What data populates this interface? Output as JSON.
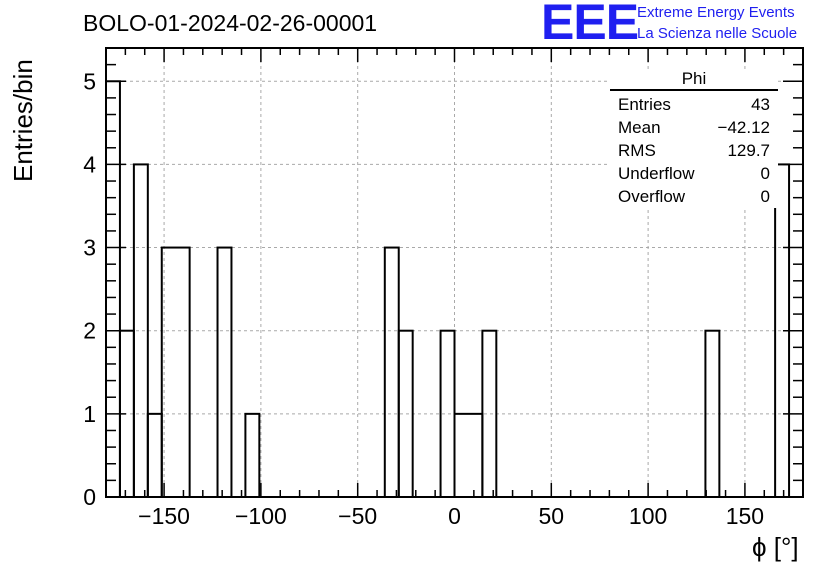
{
  "header": {
    "title": "BOLO-01-2024-02-26-00001"
  },
  "logo": {
    "text": "EEE",
    "line1": "Extreme Energy Events",
    "line2": "La Scienza nelle Scuole",
    "color": "#1f1ff0"
  },
  "stats": {
    "title": "Phi",
    "rows": [
      {
        "label": "Entries",
        "value": "43"
      },
      {
        "label": "Mean",
        "value": "−42.12"
      },
      {
        "label": "RMS",
        "value": "129.7"
      },
      {
        "label": "Underflow",
        "value": "0"
      },
      {
        "label": "Overflow",
        "value": "0"
      }
    ]
  },
  "chart_data": {
    "type": "bar",
    "title": "BOLO-01-2024-02-26-00001",
    "xlabel": "ϕ [°]",
    "ylabel": "Entries/bin",
    "xlim": [
      -180,
      180
    ],
    "ylim": [
      0,
      5.4
    ],
    "grid": true,
    "bin_width": 7.2,
    "bins": [
      {
        "x0": -180,
        "x1": -172.8,
        "value": 5
      },
      {
        "x0": -172.8,
        "x1": -165.6,
        "value": 2
      },
      {
        "x0": -165.6,
        "x1": -158.4,
        "value": 4
      },
      {
        "x0": -158.4,
        "x1": -151.2,
        "value": 1
      },
      {
        "x0": -151.2,
        "x1": -136.8,
        "value": 3
      },
      {
        "x0": -136.8,
        "x1": -122.4,
        "value": 0
      },
      {
        "x0": -122.4,
        "x1": -115.2,
        "value": 3
      },
      {
        "x0": -115.2,
        "x1": -108.0,
        "value": 0
      },
      {
        "x0": -108.0,
        "x1": -100.8,
        "value": 1
      },
      {
        "x0": -100.8,
        "x1": -36.0,
        "value": 0
      },
      {
        "x0": -36.0,
        "x1": -28.8,
        "value": 3
      },
      {
        "x0": -28.8,
        "x1": -21.6,
        "value": 2
      },
      {
        "x0": -21.6,
        "x1": -7.2,
        "value": 0
      },
      {
        "x0": -7.2,
        "x1": 0.0,
        "value": 2
      },
      {
        "x0": 0.0,
        "x1": 14.4,
        "value": 1
      },
      {
        "x0": 14.4,
        "x1": 21.6,
        "value": 2
      },
      {
        "x0": 21.6,
        "x1": 129.6,
        "value": 0
      },
      {
        "x0": 129.6,
        "x1": 136.8,
        "value": 2
      },
      {
        "x0": 136.8,
        "x1": 165.6,
        "value": 0
      },
      {
        "x0": 165.6,
        "x1": 172.8,
        "value": 4
      }
    ],
    "xticks": [
      -150,
      -100,
      -50,
      0,
      50,
      100,
      150
    ],
    "xtick_labels": [
      "−150",
      "−100",
      "−50",
      "0",
      "50",
      "100",
      "150"
    ],
    "yticks": [
      0,
      1,
      2,
      3,
      4,
      5
    ],
    "ytick_labels": [
      "0",
      "1",
      "2",
      "3",
      "4",
      "5"
    ]
  }
}
